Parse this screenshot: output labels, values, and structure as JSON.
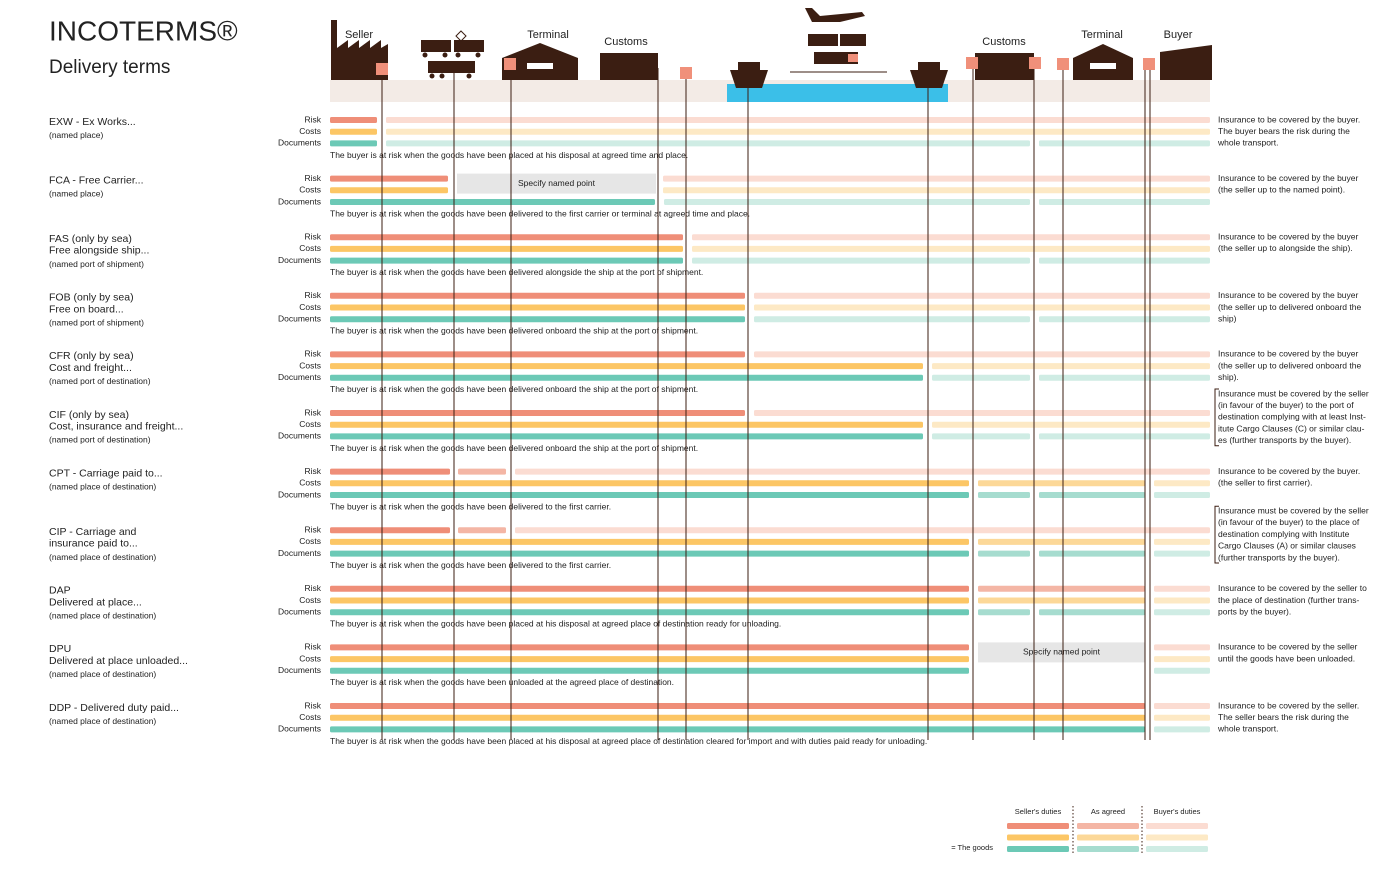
{
  "header": {
    "title": "INCOTERMS®",
    "subtitle": "Delivery terms"
  },
  "places": [
    "Seller",
    "Terminal",
    "Customs",
    "Customs",
    "Terminal",
    "Buyer"
  ],
  "bar_labels": {
    "risk": "Risk",
    "costs": "Costs",
    "documents": "Documents"
  },
  "specify": "Specify named point",
  "rows": [
    {
      "name": [
        "EXW - Ex Works..."
      ],
      "qualifier": "(named place)",
      "note": "The buyer is at risk when the goods have been placed at his disposal at agreed time and place.",
      "insurance": [
        "Insurance to be covered by the buyer.",
        "The buyer bears the risk during the",
        "whole transport."
      ]
    },
    {
      "name": [
        "FCA - Free Carrier..."
      ],
      "qualifier": "(named place)",
      "note": "The buyer is at risk when the goods have been delivered to the first carrier or terminal at agreed time and place.",
      "insurance": [
        "Insurance to be covered by the buyer",
        "(the seller up to the named point)."
      ]
    },
    {
      "name": [
        "FAS (only by sea)",
        "Free alongside ship..."
      ],
      "qualifier": "(named port of shipment)",
      "note": "The buyer is at risk when the goods have been delivered alongside the ship at the port of shipment.",
      "insurance": [
        "Insurance to be covered by the buyer",
        "(the seller up to alongside the ship)."
      ]
    },
    {
      "name": [
        "FOB (only by sea)",
        "Free on board..."
      ],
      "qualifier": "(named port of shipment)",
      "note": "The buyer is at risk when the goods have been delivered onboard the ship at the port of shipment.",
      "insurance": [
        "Insurance to be covered by the buyer",
        "(the seller up to delivered onboard the",
        "ship)"
      ]
    },
    {
      "name": [
        "CFR (only by sea)",
        "Cost and freight..."
      ],
      "qualifier": "(named port of destination)",
      "note": "The buyer is at risk when the goods have been delivered onboard the ship at the port of shipment.",
      "insurance": [
        "Insurance to be covered by the buyer",
        "(the seller up to delivered onboard the",
        "ship)."
      ]
    },
    {
      "name": [
        "CIF (only by sea)",
        "Cost, insurance and freight..."
      ],
      "qualifier": "(named port of destination)",
      "note": "The buyer is at risk when the goods have been delivered onboard the ship at the port of shipment.",
      "insurance": [
        "Insurance must be covered by the seller",
        "(in favour of the buyer) to the port of",
        "destination complying with at least Inst-",
        "itute Cargo Clauses (C) or similar clau-",
        "es (further transports by the buyer)."
      ]
    },
    {
      "name": [
        "CPT - Carriage paid to..."
      ],
      "qualifier": "(named place of destination)",
      "note": "The buyer is at risk when the goods have been delivered to the first carrier.",
      "insurance": [
        "Insurance to be covered by the buyer.",
        "(the seller to first carrier)."
      ]
    },
    {
      "name": [
        "CIP - Carriage and",
        "insurance paid to..."
      ],
      "qualifier": "(named place of destination)",
      "note": "The buyer is at risk when the goods have been delivered to the first carrier.",
      "insurance": [
        "Insurance must be covered by the seller",
        "(in favour of the buyer) to the place of",
        "destination complying with Institute",
        "Cargo Clauses (A) or similar clauses",
        "(further transports by the buyer)."
      ]
    },
    {
      "name": [
        "DAP",
        "Delivered at place..."
      ],
      "qualifier": "(named place of destination)",
      "note": "The buyer is at risk when the goods have been placed at his disposal at agreed place of destination ready for unloading.",
      "insurance": [
        "Insurance to be covered by the seller to",
        "the place of destination (further trans-",
        "ports by the buyer)."
      ]
    },
    {
      "name": [
        "DPU",
        "Delivered at place unloaded..."
      ],
      "qualifier": "(named place of destination)",
      "note": "The buyer is at risk when the goods have been unloaded at the agreed place of destination.",
      "insurance": [
        "Insurance to be covered by the seller",
        "until the goods have been unloaded."
      ]
    },
    {
      "name": [
        "DDP - Delivered duty paid..."
      ],
      "qualifier": "(named place of destination)",
      "note": "The buyer is at risk when the goods have been placed at his disposal at agreed place of destination cleared for import and with duties paid ready for unloading.",
      "insurance": [
        "Insurance to be covered by the seller.",
        "The seller bears the risk during the",
        "whole transport."
      ]
    }
  ],
  "legend": {
    "seller": "Seller's duties",
    "agreed": "As agreed",
    "buyer": "Buyer's duties",
    "goods": "= The goods"
  }
}
